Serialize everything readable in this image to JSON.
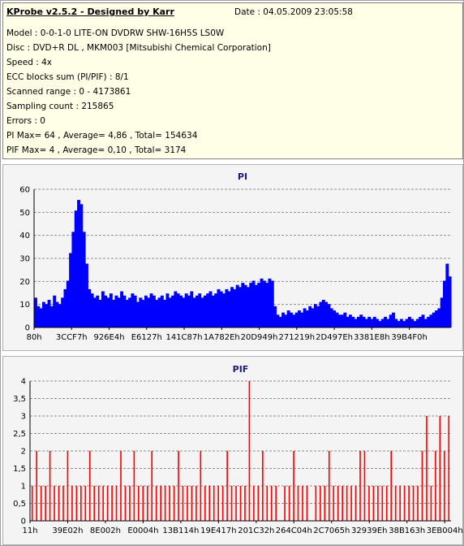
{
  "header": {
    "app_title": "KProbe v2.5.2 - Designed by Karr",
    "date_label": "Date : 04.05.2009 23:05:58"
  },
  "info_lines": [
    "Model : 0-0-1-0 LITE-ON DVDRW SHW-16H5S  LS0W",
    "Disc : DVD+R DL , MKM003 [Mitsubishi Chemical Corporation]",
    "Speed : 4x",
    "ECC blocks sum (PI/PIF) : 8/1",
    "Scanned range : 0 - 4173861",
    "Sampling count : 215865",
    "Errors : 0",
    "PI Max= 64 , Average= 4,86 , Total= 154634",
    "PIF Max= 4 , Average= 0,10 , Total= 3174"
  ],
  "colors": {
    "pi_series": "#0000ff",
    "pif_series": "#ff0000",
    "info_background": "#ffffe7",
    "chart_background": "#f4f4f4",
    "chart_title": "#1a1a7a"
  },
  "chart_data": [
    {
      "type": "bar",
      "title": "PI",
      "xlabel": "",
      "ylabel": "",
      "ylim": [
        0,
        65
      ],
      "y_ticks": [
        "0",
        "10",
        "20",
        "30",
        "40",
        "50",
        "60"
      ],
      "x_ticks": [
        "80h",
        "3CCF7h",
        "926E4h",
        "E6127h",
        "141C87h",
        "1A782Eh",
        "20D949h",
        "271219h",
        "2D497Eh",
        "3381E8h",
        "39B4F0h"
      ],
      "grid": true,
      "series": [
        {
          "values": [
            14,
            10,
            9,
            12,
            11,
            13,
            10,
            15,
            12,
            11,
            14,
            18,
            22,
            35,
            45,
            55,
            60,
            58,
            45,
            30,
            18,
            16,
            14,
            15,
            13,
            17,
            15,
            14,
            16,
            13,
            15,
            14,
            17,
            15,
            13,
            14,
            16,
            15,
            12,
            14,
            13,
            15,
            14,
            16,
            15,
            13,
            14,
            15,
            13,
            16,
            14,
            15,
            17,
            16,
            15,
            14,
            16,
            15,
            17,
            14,
            15,
            16,
            14,
            15,
            16,
            17,
            15,
            16,
            18,
            17,
            16,
            18,
            17,
            19,
            18,
            20,
            19,
            21,
            20,
            19,
            21,
            22,
            20,
            21,
            23,
            22,
            21,
            23,
            22,
            10,
            6,
            5,
            7,
            6,
            8,
            7,
            6,
            7,
            8,
            7,
            9,
            8,
            10,
            9,
            11,
            10,
            12,
            13,
            12,
            11,
            9,
            8,
            7,
            6,
            6,
            7,
            5,
            6,
            5,
            4,
            5,
            6,
            5,
            4,
            5,
            4,
            5,
            4,
            3,
            4,
            5,
            4,
            6,
            7,
            4,
            3,
            4,
            3,
            4,
            5,
            4,
            3,
            4,
            5,
            6,
            4,
            5,
            6,
            7,
            8,
            9,
            14,
            22,
            30,
            24
          ]
        }
      ]
    },
    {
      "type": "bar",
      "title": "PIF",
      "xlabel": "",
      "ylabel": "",
      "ylim": [
        0,
        4
      ],
      "y_ticks": [
        "0",
        "0,5",
        "1",
        "1,5",
        "2",
        "2,5",
        "3",
        "3,5",
        "4"
      ],
      "x_ticks": [
        "11h",
        "39E02h",
        "8E002h",
        "E0004h",
        "13B114h",
        "19E417h",
        "201C32h",
        "264C04h",
        "2C7065h",
        "32939Eh",
        "38B163h",
        "3EB004h"
      ],
      "grid": true,
      "series": [
        {
          "values": [
            1,
            2,
            1,
            1,
            2,
            1,
            1,
            1,
            2,
            1,
            1,
            1,
            1,
            2,
            1,
            1,
            1,
            1,
            1,
            1,
            2,
            1,
            1,
            2,
            1,
            1,
            1,
            2,
            1,
            1,
            1,
            1,
            1,
            2,
            1,
            1,
            1,
            1,
            2,
            1,
            1,
            1,
            1,
            1,
            2,
            1,
            1,
            1,
            1,
            4,
            1,
            1,
            2,
            1,
            1,
            1,
            0,
            1,
            1,
            2,
            1,
            1,
            1,
            0,
            1,
            1,
            1,
            2,
            1,
            1,
            1,
            1,
            1,
            1,
            2,
            2,
            1,
            1,
            1,
            1,
            1,
            2,
            1,
            1,
            1,
            1,
            1,
            1,
            2,
            3,
            1,
            2,
            3,
            2,
            3
          ]
        }
      ]
    }
  ]
}
